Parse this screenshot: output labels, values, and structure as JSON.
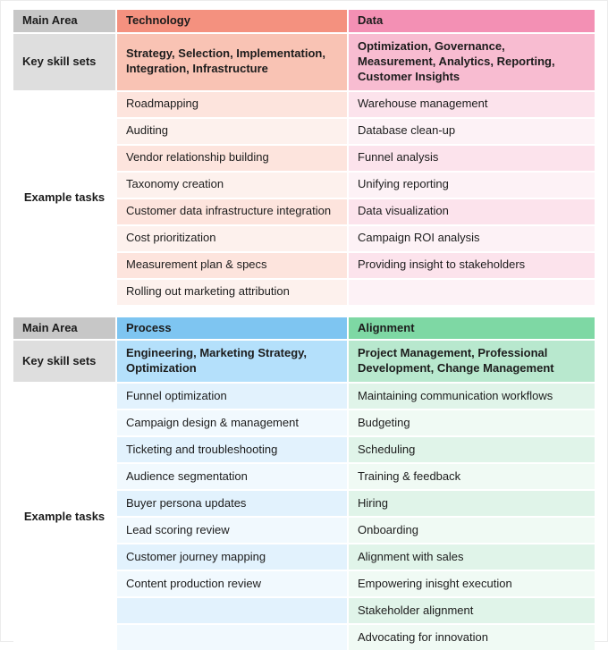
{
  "chart_data": {
    "type": "table",
    "title": "Marketing operations main areas, key skill sets and example tasks",
    "colors": {
      "main_area_header_bg": "#c7c7c7",
      "key_skill_sets_bg": "#dedede",
      "technology": {
        "header": "#f4917f",
        "skills": "#f9c3b4",
        "row_odd": "#fde4dd",
        "row_even": "#fdf1ed"
      },
      "data": {
        "header": "#f390b4",
        "skills": "#f8bcd1",
        "row_odd": "#fce3ec",
        "row_even": "#fdf2f6"
      },
      "process": {
        "header": "#7ec5f1",
        "skills": "#b4e0fb",
        "row_odd": "#e2f2fd",
        "row_even": "#f1f9fe"
      },
      "alignment": {
        "header": "#7ed8a4",
        "skills": "#b8e8ce",
        "row_odd": "#e0f4e9",
        "row_even": "#f0faf4"
      }
    },
    "sections": [
      {
        "header_label": "Main Area",
        "skills_label": "Key skill sets",
        "tasks_label": "Example tasks",
        "columns": [
          {
            "title": "Technology",
            "skills": "Strategy, Selection, Implementation, Integration, Infrastructure",
            "tasks": [
              "Roadmapping",
              "Auditing",
              "Vendor relationship building",
              "Taxonomy creation",
              "Customer data infrastructure integration",
              "Cost prioritization",
              "Measurement plan & specs",
              "Rolling out marketing attribution"
            ]
          },
          {
            "title": "Data",
            "skills": "Optimization, Governance, Measurement, Analytics, Reporting, Customer Insights",
            "tasks": [
              "Warehouse management",
              "Database clean-up",
              "Funnel analysis",
              "Unifying reporting",
              "Data visualization",
              "Campaign ROI analysis",
              "Providing insight to stakeholders",
              ""
            ]
          }
        ]
      },
      {
        "header_label": "Main Area",
        "skills_label": "Key skill sets",
        "tasks_label": "Example tasks",
        "columns": [
          {
            "title": "Process",
            "skills": "Engineering, Marketing Strategy, Optimization",
            "tasks": [
              "Funnel optimization",
              "Campaign design & management",
              "Ticketing and troubleshooting",
              "Audience segmentation",
              "Buyer persona updates",
              "Lead scoring review",
              "Customer journey mapping",
              "Content production review",
              "",
              ""
            ]
          },
          {
            "title": "Alignment",
            "skills": "Project Management, Professional Development, Change Management",
            "tasks": [
              "Maintaining communication workflows",
              "Budgeting",
              "Scheduling",
              "Training & feedback",
              "Hiring",
              "Onboarding",
              "Alignment with sales",
              "Empowering inisght execution",
              "Stakeholder alignment",
              "Advocating for innovation"
            ]
          }
        ]
      }
    ]
  }
}
